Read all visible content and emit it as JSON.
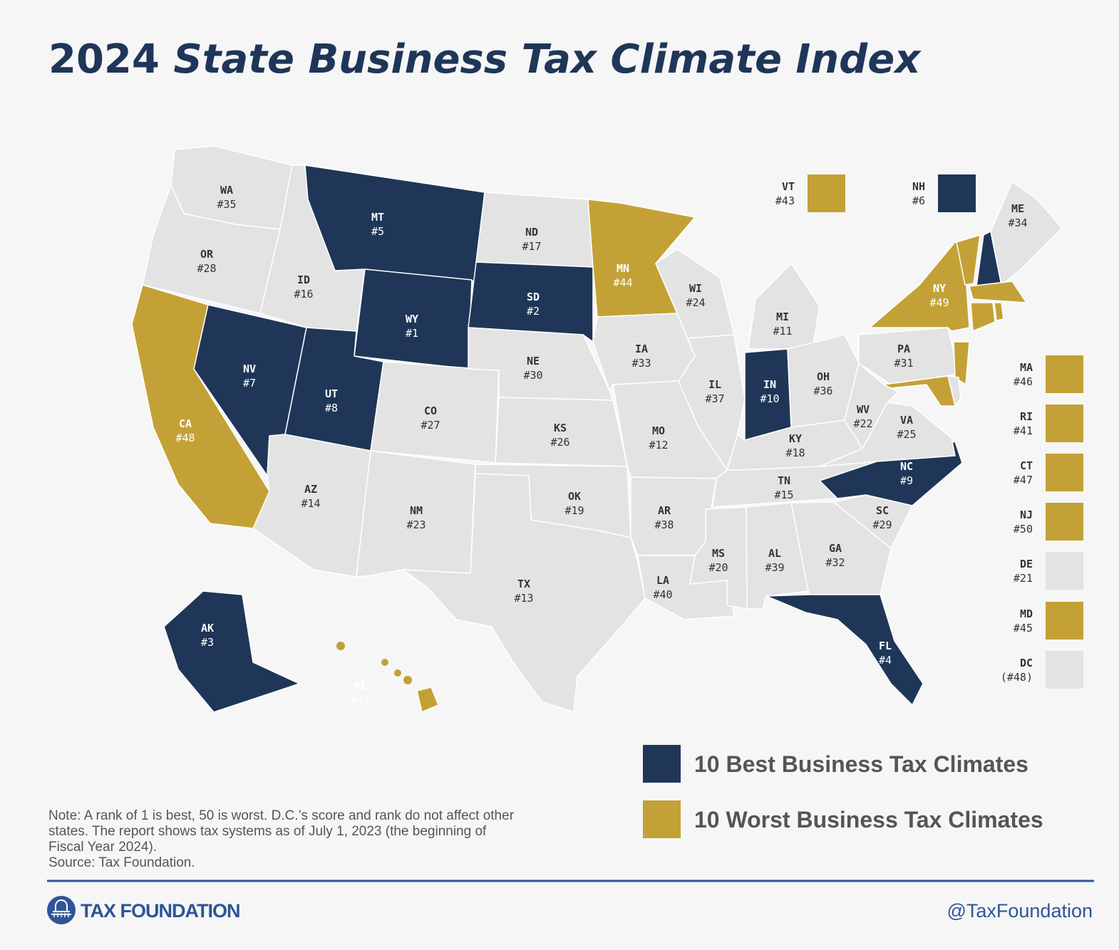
{
  "header": {
    "year": "2024",
    "name": "State Business Tax Climate Index"
  },
  "states": [
    {
      "abbr": "WA",
      "rank": "#35",
      "color": "#e3e3e3"
    },
    {
      "abbr": "OR",
      "rank": "#28",
      "color": "#e3e3e3"
    },
    {
      "abbr": "CA",
      "rank": "#48",
      "color": "#c4a136"
    },
    {
      "abbr": "ID",
      "rank": "#16",
      "color": "#e3e3e3"
    },
    {
      "abbr": "NV",
      "rank": "#7",
      "color": "#1f3658"
    },
    {
      "abbr": "MT",
      "rank": "#5",
      "color": "#1f3658"
    },
    {
      "abbr": "WY",
      "rank": "#1",
      "color": "#1f3658"
    },
    {
      "abbr": "UT",
      "rank": "#8",
      "color": "#1f3658"
    },
    {
      "abbr": "AZ",
      "rank": "#14",
      "color": "#e3e3e3"
    },
    {
      "abbr": "CO",
      "rank": "#27",
      "color": "#e3e3e3"
    },
    {
      "abbr": "NM",
      "rank": "#23",
      "color": "#e3e3e3"
    },
    {
      "abbr": "ND",
      "rank": "#17",
      "color": "#e3e3e3"
    },
    {
      "abbr": "SD",
      "rank": "#2",
      "color": "#1f3658"
    },
    {
      "abbr": "NE",
      "rank": "#30",
      "color": "#e3e3e3"
    },
    {
      "abbr": "KS",
      "rank": "#26",
      "color": "#e3e3e3"
    },
    {
      "abbr": "OK",
      "rank": "#19",
      "color": "#e3e3e3"
    },
    {
      "abbr": "TX",
      "rank": "#13",
      "color": "#e3e3e3"
    },
    {
      "abbr": "MN",
      "rank": "#44",
      "color": "#c4a136"
    },
    {
      "abbr": "IA",
      "rank": "#33",
      "color": "#e3e3e3"
    },
    {
      "abbr": "MO",
      "rank": "#12",
      "color": "#e3e3e3"
    },
    {
      "abbr": "AR",
      "rank": "#38",
      "color": "#e3e3e3"
    },
    {
      "abbr": "LA",
      "rank": "#40",
      "color": "#e3e3e3"
    },
    {
      "abbr": "WI",
      "rank": "#24",
      "color": "#e3e3e3"
    },
    {
      "abbr": "IL",
      "rank": "#37",
      "color": "#e3e3e3"
    },
    {
      "abbr": "MI",
      "rank": "#11",
      "color": "#e3e3e3"
    },
    {
      "abbr": "IN",
      "rank": "#10",
      "color": "#1f3658"
    },
    {
      "abbr": "OH",
      "rank": "#36",
      "color": "#e3e3e3"
    },
    {
      "abbr": "KY",
      "rank": "#18",
      "color": "#e3e3e3"
    },
    {
      "abbr": "TN",
      "rank": "#15",
      "color": "#e3e3e3"
    },
    {
      "abbr": "MS",
      "rank": "#20",
      "color": "#e3e3e3"
    },
    {
      "abbr": "AL",
      "rank": "#39",
      "color": "#e3e3e3"
    },
    {
      "abbr": "GA",
      "rank": "#32",
      "color": "#e3e3e3"
    },
    {
      "abbr": "FL",
      "rank": "#4",
      "color": "#1f3658"
    },
    {
      "abbr": "SC",
      "rank": "#29",
      "color": "#e3e3e3"
    },
    {
      "abbr": "NC",
      "rank": "#9",
      "color": "#1f3658"
    },
    {
      "abbr": "VA",
      "rank": "#25",
      "color": "#e3e3e3"
    },
    {
      "abbr": "WV",
      "rank": "#22",
      "color": "#e3e3e3"
    },
    {
      "abbr": "PA",
      "rank": "#31",
      "color": "#e3e3e3"
    },
    {
      "abbr": "NY",
      "rank": "#49",
      "color": "#c4a136"
    },
    {
      "abbr": "VT",
      "rank": "#43",
      "color": "#c4a136"
    },
    {
      "abbr": "NH",
      "rank": "#6",
      "color": "#1f3658"
    },
    {
      "abbr": "ME",
      "rank": "#34",
      "color": "#e3e3e3"
    },
    {
      "abbr": "MA",
      "rank": "#46",
      "color": "#c4a136"
    },
    {
      "abbr": "RI",
      "rank": "#41",
      "color": "#c4a136"
    },
    {
      "abbr": "CT",
      "rank": "#47",
      "color": "#c4a136"
    },
    {
      "abbr": "NJ",
      "rank": "#50",
      "color": "#c4a136"
    },
    {
      "abbr": "DE",
      "rank": "#21",
      "color": "#e3e3e3"
    },
    {
      "abbr": "MD",
      "rank": "#45",
      "color": "#c4a136"
    },
    {
      "abbr": "DC",
      "rank": "(#48)",
      "color": "#e3e3e3"
    },
    {
      "abbr": "AK",
      "rank": "#3",
      "color": "#1f3658"
    },
    {
      "abbr": "HI",
      "rank": "#42",
      "color": "#c4a136"
    }
  ],
  "legend": [
    {
      "label": "10 Best Business Tax Climates",
      "color": "#1f3658"
    },
    {
      "label": "10 Worst Business Tax Climates",
      "color": "#c4a136"
    }
  ],
  "note": [
    "Note: A rank of 1 is best, 50 is worst. D.C.’s score and rank do not affect other",
    "states. The report shows tax systems as of July 1, 2023 (the beginning of",
    "Fiscal Year 2024).",
    "Source: Tax Foundation."
  ],
  "footer": {
    "logo": "TAX FOUNDATION",
    "handle": "@TaxFoundation"
  }
}
